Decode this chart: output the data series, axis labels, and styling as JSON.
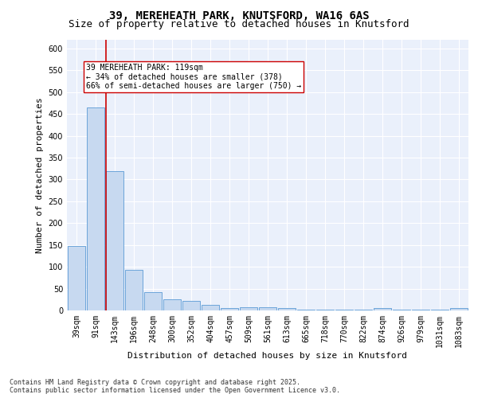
{
  "title_line1": "39, MEREHEATH PARK, KNUTSFORD, WA16 6AS",
  "title_line2": "Size of property relative to detached houses in Knutsford",
  "xlabel": "Distribution of detached houses by size in Knutsford",
  "ylabel": "Number of detached properties",
  "categories": [
    "39sqm",
    "91sqm",
    "143sqm",
    "196sqm",
    "248sqm",
    "300sqm",
    "352sqm",
    "404sqm",
    "457sqm",
    "509sqm",
    "561sqm",
    "613sqm",
    "665sqm",
    "718sqm",
    "770sqm",
    "822sqm",
    "874sqm",
    "926sqm",
    "979sqm",
    "1031sqm",
    "1083sqm"
  ],
  "values": [
    148,
    465,
    320,
    93,
    42,
    25,
    22,
    13,
    6,
    7,
    8,
    6,
    2,
    1,
    1,
    1,
    5,
    1,
    1,
    1,
    5
  ],
  "bar_color": "#c7d9f0",
  "bar_edge_color": "#5b9bd5",
  "vline_x": 1.53,
  "vline_color": "#cc0000",
  "annotation_text": "39 MEREHEATH PARK: 119sqm\n← 34% of detached houses are smaller (378)\n66% of semi-detached houses are larger (750) →",
  "annotation_box_color": "#ffffff",
  "annotation_box_edge": "#cc0000",
  "ylim": [
    0,
    620
  ],
  "yticks": [
    0,
    50,
    100,
    150,
    200,
    250,
    300,
    350,
    400,
    450,
    500,
    550,
    600
  ],
  "background_color": "#eaf0fb",
  "footer_line1": "Contains HM Land Registry data © Crown copyright and database right 2025.",
  "footer_line2": "Contains public sector information licensed under the Open Government Licence v3.0.",
  "title_fontsize": 10,
  "subtitle_fontsize": 9,
  "axis_label_fontsize": 8,
  "tick_fontsize": 7,
  "footer_fontsize": 6
}
